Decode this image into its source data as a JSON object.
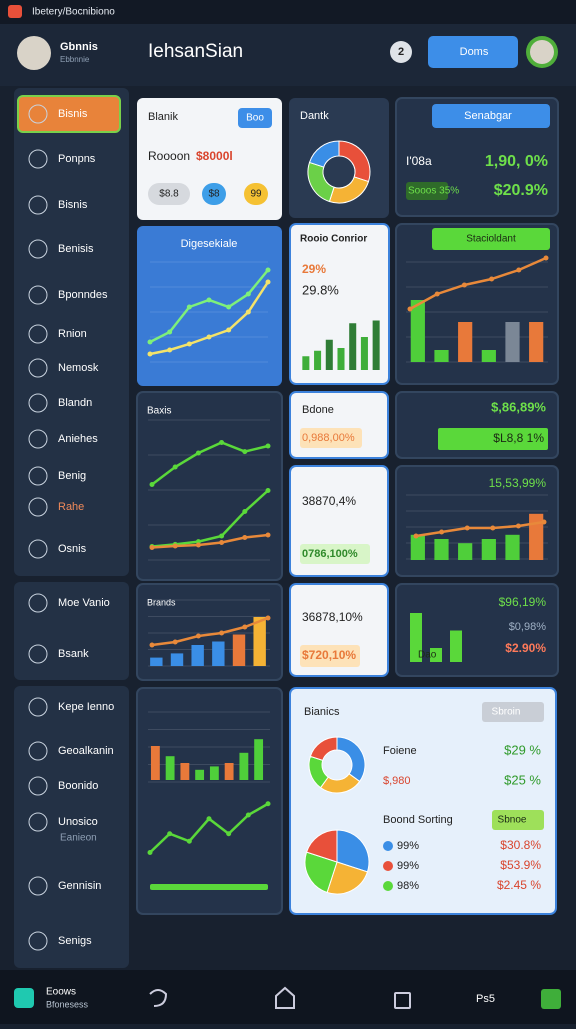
{
  "status_bar": {
    "title": "Ibetery/Bocnibiono"
  },
  "header": {
    "profile_name": "Gbnnis",
    "profile_sub": "Ebbnnie",
    "title": "IehsanSian",
    "badge": "2",
    "button": "Doms"
  },
  "sidebar": {
    "items": [
      "Bisnis",
      "Ponpns",
      "Bisnis",
      "Benisis",
      "Bponndes",
      "Rnion",
      "Nemosk",
      "Blandn",
      "Aniehes",
      "Benig",
      "Rahe",
      "Osnis",
      "Moe Vanio",
      "Bsank",
      "Kepe Ienno",
      "Geoalkanin",
      "Boonido",
      "Unosico",
      "Gennisin",
      "Senigs"
    ],
    "sub_label": "Eanieon"
  },
  "cards": {
    "balance": {
      "title": "Blanik",
      "button": "Boo",
      "label": "Roooon",
      "amount": "$8000l",
      "chips": [
        "$8.8",
        "$8",
        "99"
      ]
    },
    "donut": {
      "title": "Dantk",
      "values": [
        30,
        25,
        25,
        20
      ],
      "colors": [
        "#e8503a",
        "#f5b335",
        "#6bd048",
        "#3a8ee6"
      ]
    },
    "summary": {
      "dropdown": "Senabgar",
      "label1": "I'08a",
      "value1": "1,90, 0%",
      "label2": "Sooos 35%",
      "value2": "$20.9%"
    },
    "trend": {
      "title": "Digesekiale",
      "series": [
        {
          "color": "#7ef07a",
          "values": [
            20,
            30,
            55,
            62,
            55,
            68,
            92
          ]
        },
        {
          "color": "#f3e36a",
          "values": [
            8,
            12,
            18,
            25,
            32,
            50,
            80
          ]
        }
      ]
    },
    "report": {
      "title": "Rooio Conrior",
      "stat1": "29%",
      "stat2": "29.8%",
      "values": [
        25,
        35,
        55,
        40,
        85,
        60,
        90
      ],
      "colors": [
        "#3fae3a",
        "#3fae3a",
        "#2f7d36",
        "#3fae3a",
        "#2f7d36",
        "#3fae3a",
        "#2f7d36"
      ]
    },
    "stack": {
      "button": "Stacioldant",
      "bars": [
        62,
        12,
        40,
        12,
        40,
        40
      ],
      "colors": [
        "#4fcf3a",
        "#4fcf3a",
        "#e8793a",
        "#4fcf3a",
        "#7b8796",
        "#e8793a"
      ],
      "line": {
        "color": "#e8893a",
        "values": [
          10,
          35,
          50,
          60,
          75,
          95
        ]
      }
    },
    "baxis": {
      "title": "Baxis",
      "series": [
        {
          "color": "#5ad83a",
          "values": [
            15,
            40,
            60,
            75,
            62,
            70
          ]
        },
        {
          "color": "#5ad83a",
          "values": [
            5,
            8,
            12,
            20,
            55,
            85
          ]
        },
        {
          "color": "#e8893a",
          "values": [
            5,
            8,
            10,
            15,
            25,
            30
          ]
        }
      ]
    },
    "bdone": {
      "title": "Bdone",
      "value": "0,988,00%"
    },
    "gain": {
      "value": "$,86,89%",
      "bar_label": "$L8,8 1%"
    },
    "ratio": {
      "value1": "38870,4%",
      "value2": "0786,100%"
    },
    "flow": {
      "value": "15,53,99%",
      "bars": [
        30,
        25,
        20,
        25,
        30,
        55
      ],
      "colors": [
        "#4fcf3a",
        "#4fcf3a",
        "#4fcf3a",
        "#4fcf3a",
        "#4fcf3a",
        "#e8793a"
      ],
      "line": {
        "color": "#e8893a",
        "values": [
          10,
          20,
          30,
          30,
          35,
          45
        ]
      }
    },
    "brands": {
      "title": "Brands",
      "bars": [
        12,
        18,
        30,
        35,
        45,
        70
      ],
      "colors": [
        "#3a8ee6",
        "#3a8ee6",
        "#3a8ee6",
        "#3a8ee6",
        "#e8793a",
        "#f5b335"
      ],
      "line": {
        "color": "#e8893a",
        "values": [
          25,
          30,
          40,
          45,
          55,
          70
        ]
      }
    },
    "mix": {
      "value1": "36878,10%",
      "value2": "$720,10%"
    },
    "tail": {
      "value1": "$96,19%",
      "value2": "$0,98%",
      "value3": "$2.90%",
      "bar_label": "Dao",
      "bars": [
        70,
        20,
        45
      ]
    },
    "volume": {
      "bars": [
        50,
        35,
        25,
        15,
        20,
        25,
        40,
        60
      ],
      "colors": [
        "#e8793a",
        "#4fcf3a",
        "#e8793a",
        "#4fcf3a",
        "#4fcf3a",
        "#e8793a",
        "#4fcf3a",
        "#4fcf3a"
      ],
      "line": {
        "color": "#5ad83a",
        "values": [
          30,
          55,
          45,
          75,
          55,
          80,
          95
        ]
      }
    },
    "business": {
      "title": "Bianics",
      "dropdown": "Sbroin",
      "donut": [
        35,
        25,
        20,
        20
      ],
      "pie": [
        30,
        25,
        25,
        20
      ],
      "colors": [
        "#3a8ee6",
        "#f5b335",
        "#5ad83a",
        "#e8503a"
      ],
      "row1_label": "Foiene",
      "row1_value": "$29 %",
      "row2_label": "$,980",
      "row2_value": "$25 %",
      "sorting": "Boond Sorting",
      "sort_button": "Sbnoe",
      "rows": [
        [
          "99%",
          "$30.8%"
        ],
        [
          "99%",
          "$53.9%"
        ],
        [
          "98%",
          "$2.45 %"
        ]
      ]
    }
  },
  "bottom_bar": {
    "app": "Eoows",
    "app_sub": "Bfonesess",
    "status": "Ps5"
  }
}
